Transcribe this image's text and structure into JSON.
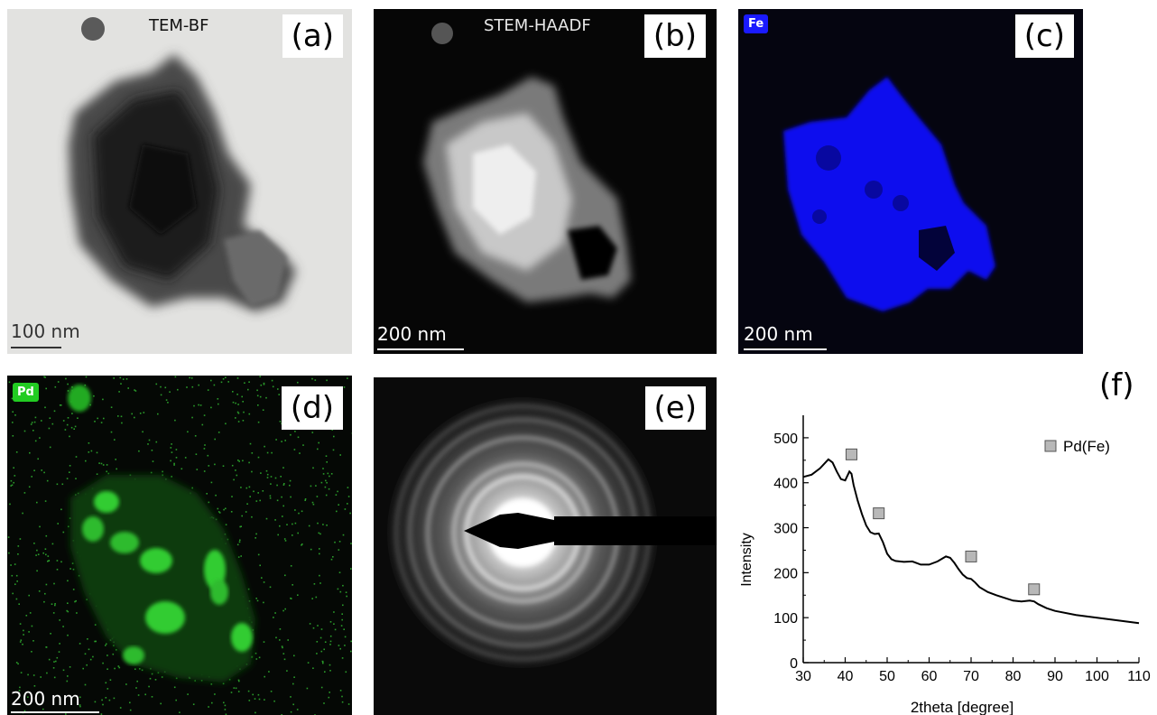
{
  "panels": {
    "a": {
      "tag": "(a)",
      "caption": "TEM-BF",
      "scale": "100 nm"
    },
    "b": {
      "tag": "(b)",
      "caption": "STEM-HAADF",
      "scale": "200 nm"
    },
    "c": {
      "tag": "(c)",
      "element": "Fe",
      "scale": "200 nm",
      "color": "#1a1aff"
    },
    "d": {
      "tag": "(d)",
      "element": "Pd",
      "scale": "200 nm",
      "color": "#22cc22"
    },
    "e": {
      "tag": "(e)"
    },
    "f": {
      "tag": "(f)"
    }
  },
  "chart_data": {
    "type": "line",
    "xlabel": "2theta [degree]",
    "ylabel": "Intensity",
    "xlim": [
      30,
      110
    ],
    "ylim": [
      0,
      550
    ],
    "xticks": [
      30,
      40,
      50,
      60,
      70,
      80,
      90,
      100,
      110
    ],
    "yticks": [
      0,
      100,
      200,
      300,
      400,
      500
    ],
    "series": [
      {
        "values": [
          [
            30,
            413
          ],
          [
            32,
            418
          ],
          [
            34,
            432
          ],
          [
            36,
            452
          ],
          [
            37,
            445
          ],
          [
            38,
            425
          ],
          [
            39,
            408
          ],
          [
            40,
            405
          ],
          [
            41,
            425
          ],
          [
            41.5,
            420
          ],
          [
            42,
            395
          ],
          [
            43,
            360
          ],
          [
            44,
            330
          ],
          [
            45,
            305
          ],
          [
            46,
            290
          ],
          [
            47,
            286
          ],
          [
            48,
            287
          ],
          [
            49,
            268
          ],
          [
            50,
            242
          ],
          [
            51,
            230
          ],
          [
            52,
            226
          ],
          [
            54,
            224
          ],
          [
            56,
            225
          ],
          [
            58,
            218
          ],
          [
            60,
            218
          ],
          [
            62,
            225
          ],
          [
            64,
            236
          ],
          [
            65,
            233
          ],
          [
            66,
            222
          ],
          [
            67,
            208
          ],
          [
            68,
            196
          ],
          [
            69,
            188
          ],
          [
            70,
            186
          ],
          [
            71,
            178
          ],
          [
            72,
            168
          ],
          [
            74,
            157
          ],
          [
            76,
            150
          ],
          [
            78,
            144
          ],
          [
            80,
            138
          ],
          [
            82,
            136
          ],
          [
            84,
            138
          ],
          [
            85,
            136
          ],
          [
            86,
            130
          ],
          [
            88,
            121
          ],
          [
            90,
            115
          ],
          [
            95,
            106
          ],
          [
            100,
            100
          ],
          [
            105,
            94
          ],
          [
            110,
            88
          ]
        ]
      },
      {
        "name": "Pd(Fe)",
        "type": "scatter",
        "values": [
          [
            41.5,
            463
          ],
          [
            48,
            332
          ],
          [
            70,
            236
          ],
          [
            85,
            163
          ]
        ]
      }
    ],
    "legend": "top-right"
  }
}
